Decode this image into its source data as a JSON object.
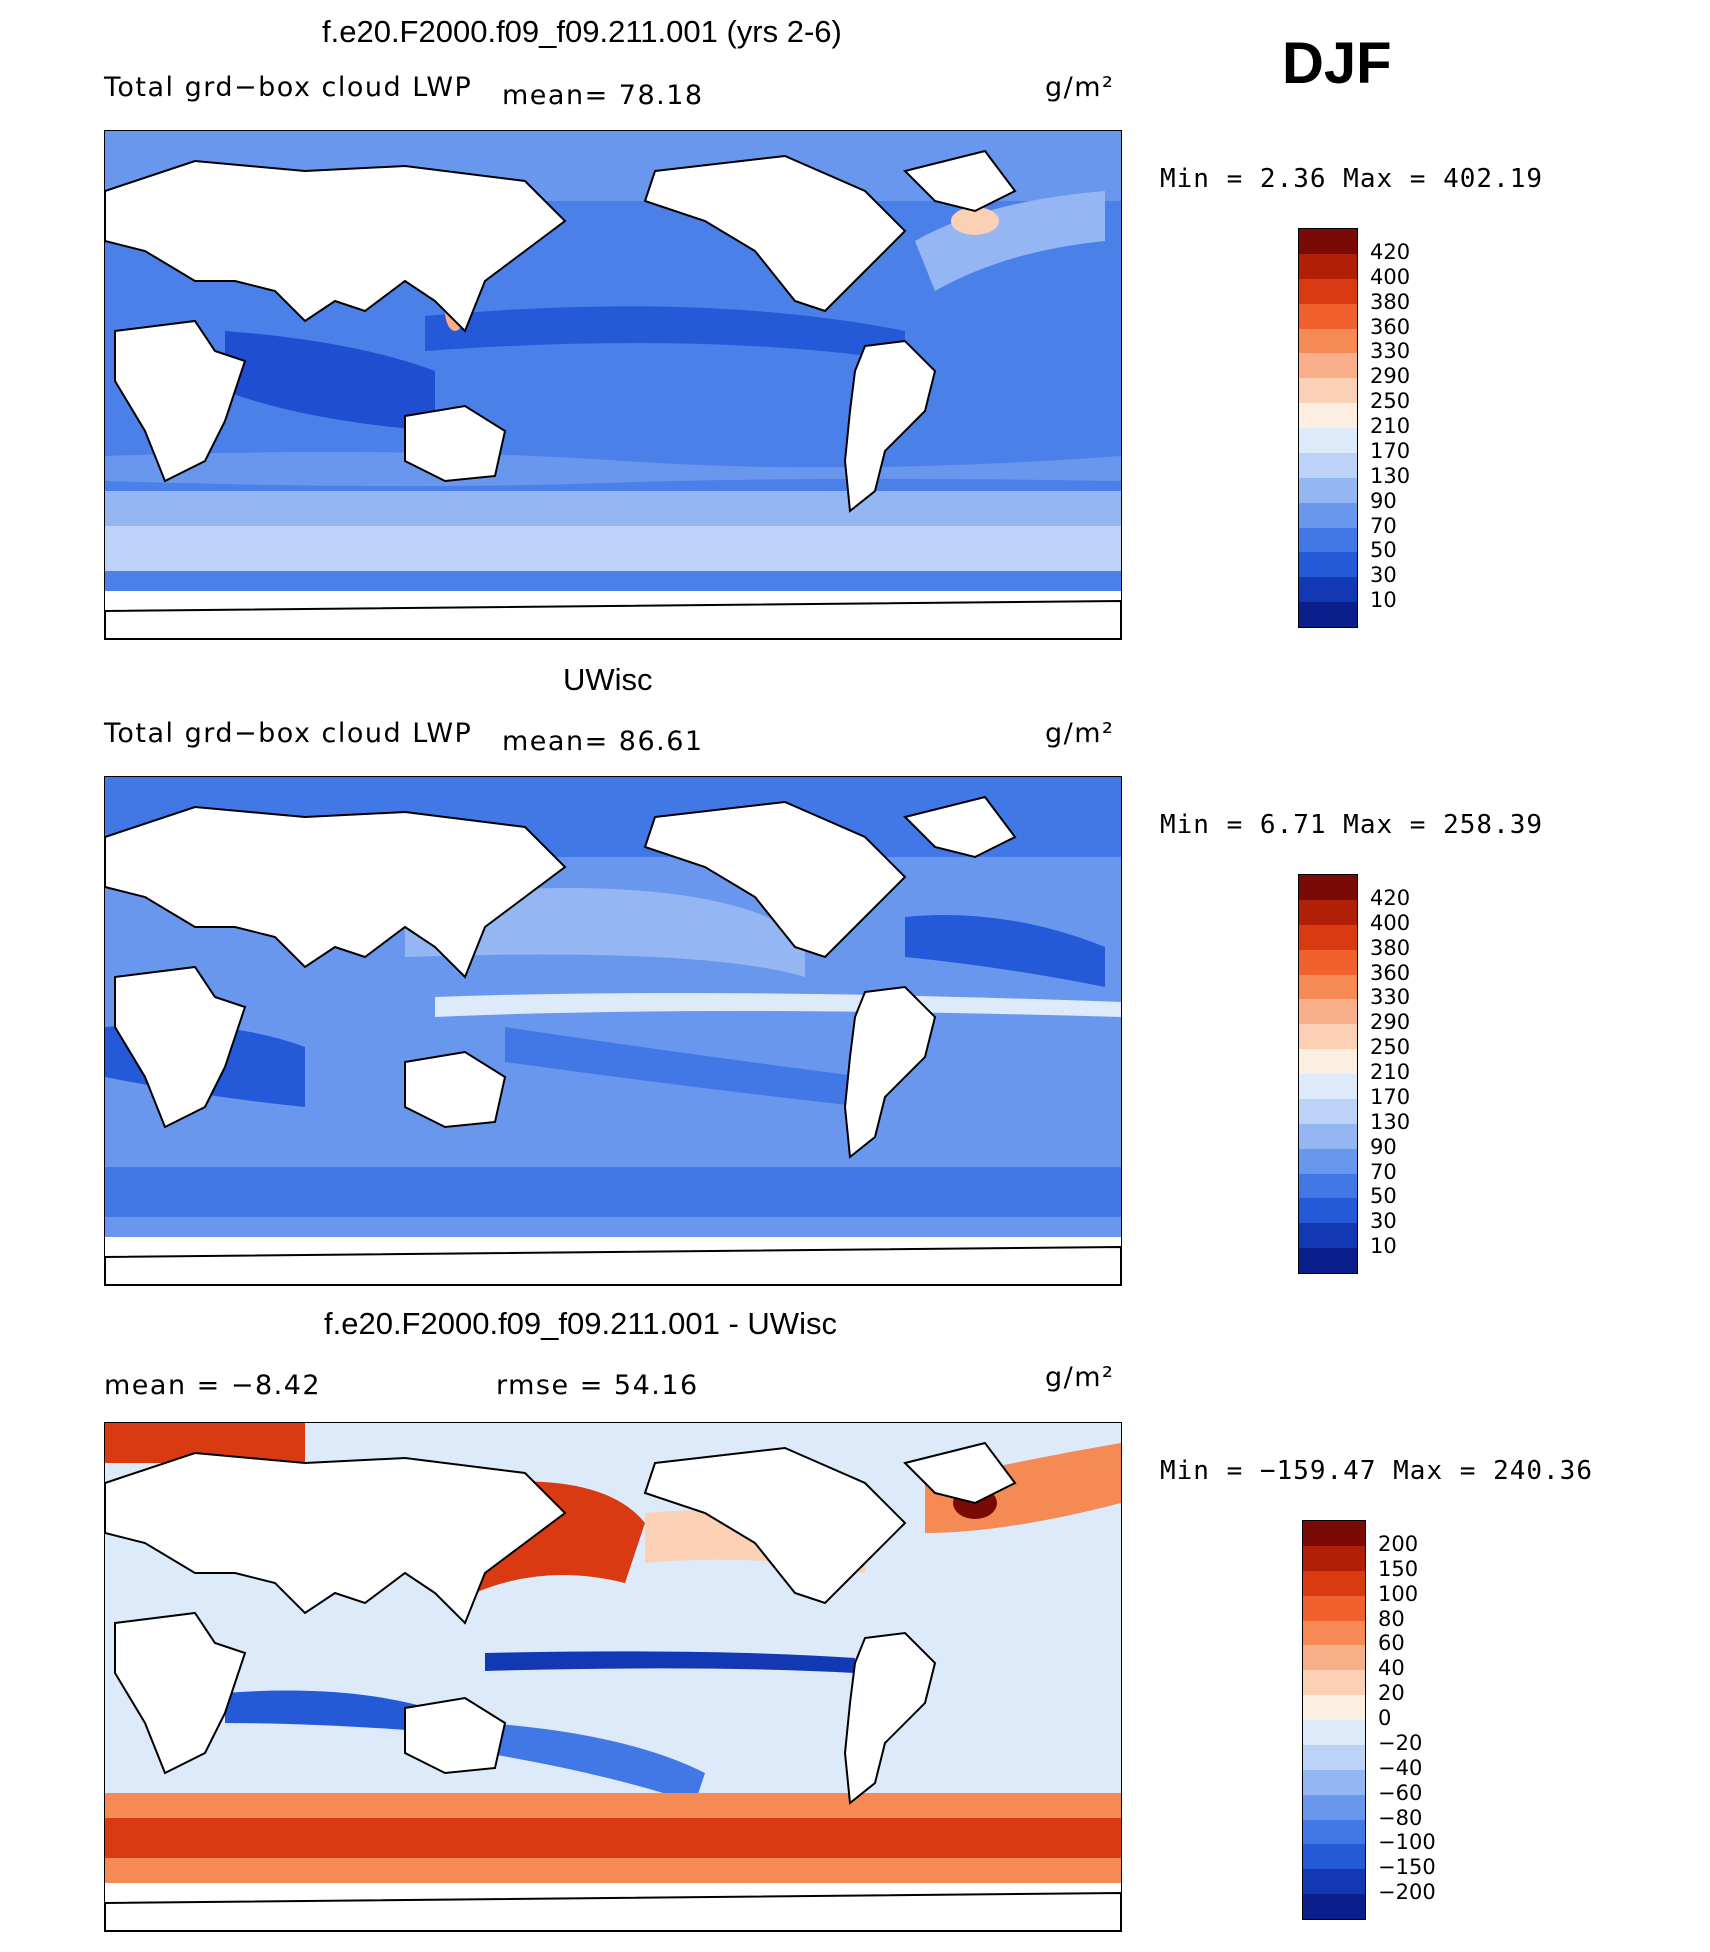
{
  "season_label": "DJF",
  "unit_label": "g/m²",
  "panels": [
    {
      "title": "f.e20.F2000.f09_f09.211.001 (yrs 2-6)",
      "variable": "Total grd−box cloud LWP",
      "mean_text": "mean=   78.18",
      "minmax_text": "Min =    2.36 Max = 402.19",
      "scale": "abs"
    },
    {
      "title": "UWisc",
      "variable": "Total grd−box cloud LWP",
      "mean_text": "mean=   86.61",
      "minmax_text": "Min =    6.71 Max = 258.39",
      "scale": "abs"
    },
    {
      "title": "f.e20.F2000.f09_f09.211.001 - UWisc",
      "mean_text": "mean =   −8.42",
      "rmse_text": "rmse =   54.16",
      "minmax_text": "Min = −159.47 Max = 240.36",
      "scale": "diff"
    }
  ],
  "colorbars": {
    "abs": {
      "levels": [
        "420",
        "400",
        "380",
        "360",
        "330",
        "290",
        "250",
        "210",
        "170",
        "130",
        "90",
        "70",
        "50",
        "30",
        "10"
      ],
      "colors": [
        "#7a0a05",
        "#b01f06",
        "#da3a12",
        "#f0612d",
        "#f58a55",
        "#f8ae88",
        "#fbd0b4",
        "#fdeee2",
        "#dceafa",
        "#bcd3f7",
        "#94b7f4",
        "#6a97ee",
        "#4278e6",
        "#2459d8",
        "#1338b4",
        "#0a1f8c"
      ]
    },
    "diff": {
      "levels": [
        "200",
        "150",
        "100",
        "80",
        "60",
        "40",
        "20",
        "0",
        "−20",
        "−40",
        "−60",
        "−80",
        "−100",
        "−150",
        "−200"
      ],
      "colors": [
        "#7a0a05",
        "#b01f06",
        "#da3a12",
        "#f0612d",
        "#f58a55",
        "#f8ae88",
        "#fbd0b4",
        "#fdeee2",
        "#dceafa",
        "#bcd3f7",
        "#94b7f4",
        "#6a97ee",
        "#4278e6",
        "#2459d8",
        "#1338b4",
        "#0a1f8c"
      ]
    }
  }
}
